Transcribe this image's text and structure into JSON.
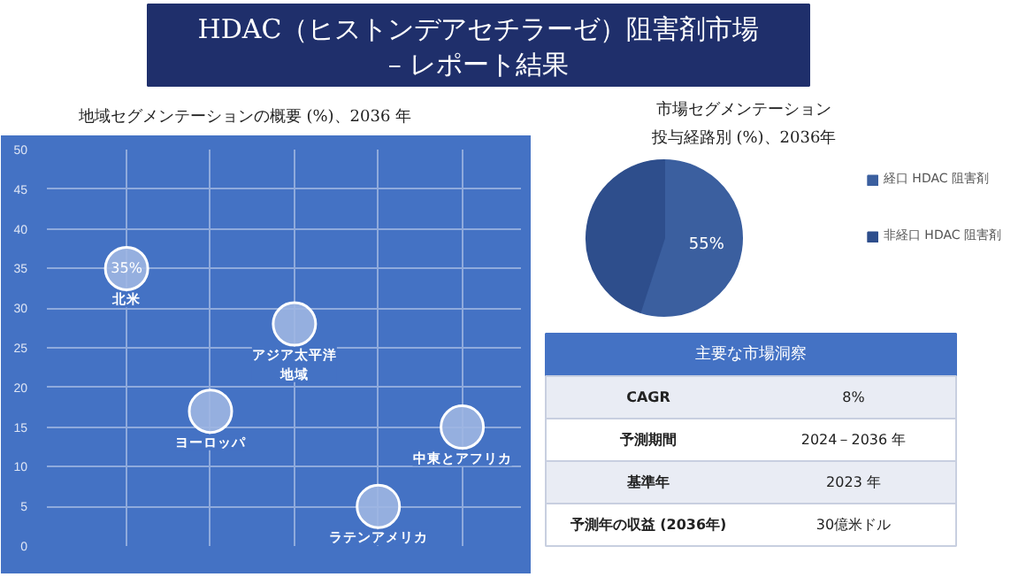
{
  "chart_data": [
    {
      "type": "other",
      "title": "HDAC（ヒストンデアセチラーゼ）阻害剤市場\n– レポート結果"
    },
    {
      "type": "bubble",
      "title": "地域セグメンテーションの概要 (%)、2036 年",
      "categories": [
        null,
        null,
        null,
        null,
        null
      ],
      "series": [
        {
          "name": "北米",
          "color": "#9fb6e2",
          "values": [
            35,
            null,
            null,
            null,
            null
          ],
          "sizes": [
            1,
            null,
            null,
            null,
            null
          ],
          "value_labels": [
            "35%",
            null,
            null,
            null,
            null
          ]
        },
        {
          "name": "ヨーロッパ",
          "color": "#9fb6e2",
          "values": [
            null,
            17,
            null,
            null,
            null
          ],
          "sizes": [
            null,
            1,
            null,
            null,
            null
          ]
        },
        {
          "name": "アジア太平洋地域",
          "color": "#9fb6e2",
          "values": [
            null,
            null,
            28,
            null,
            null
          ],
          "sizes": [
            null,
            null,
            1,
            null,
            null
          ]
        },
        {
          "name": "ラテンアメリカ",
          "color": "#9fb6e2",
          "values": [
            null,
            null,
            null,
            5,
            null
          ],
          "sizes": [
            null,
            null,
            null,
            1,
            null
          ]
        },
        {
          "name": "中東とアフリカ",
          "color": "#9fb6e2",
          "values": [
            null,
            null,
            null,
            null,
            15
          ],
          "sizes": [
            null,
            null,
            null,
            null,
            1
          ]
        }
      ],
      "ylim": [
        0,
        50
      ],
      "yticks": [
        0,
        5,
        10,
        15,
        20,
        25,
        30,
        35,
        40,
        45,
        50
      ],
      "grid": true,
      "tick_labels": "y"
    },
    {
      "type": "pie",
      "title": "市場セグメンテーション",
      "subtitle": "投与経路別 (%)、2036年",
      "categories": [
        "経口 HDAC 阻害剤",
        "非経口 HDAC 阻害剤"
      ],
      "values": [
        55,
        45
      ],
      "colors": [
        "#3b5f9f",
        "#2e4e8c"
      ],
      "value_labels": [
        "55%",
        null
      ],
      "legend": "right"
    },
    {
      "type": "other",
      "title": "主要な市場洞察",
      "annotations": [
        "CAGR",
        "8%",
        "予測期間",
        "2024－2036 年",
        "基準年",
        "2023 年",
        "予測年の収益 (2036年)",
        "30億米ドル"
      ]
    }
  ]
}
